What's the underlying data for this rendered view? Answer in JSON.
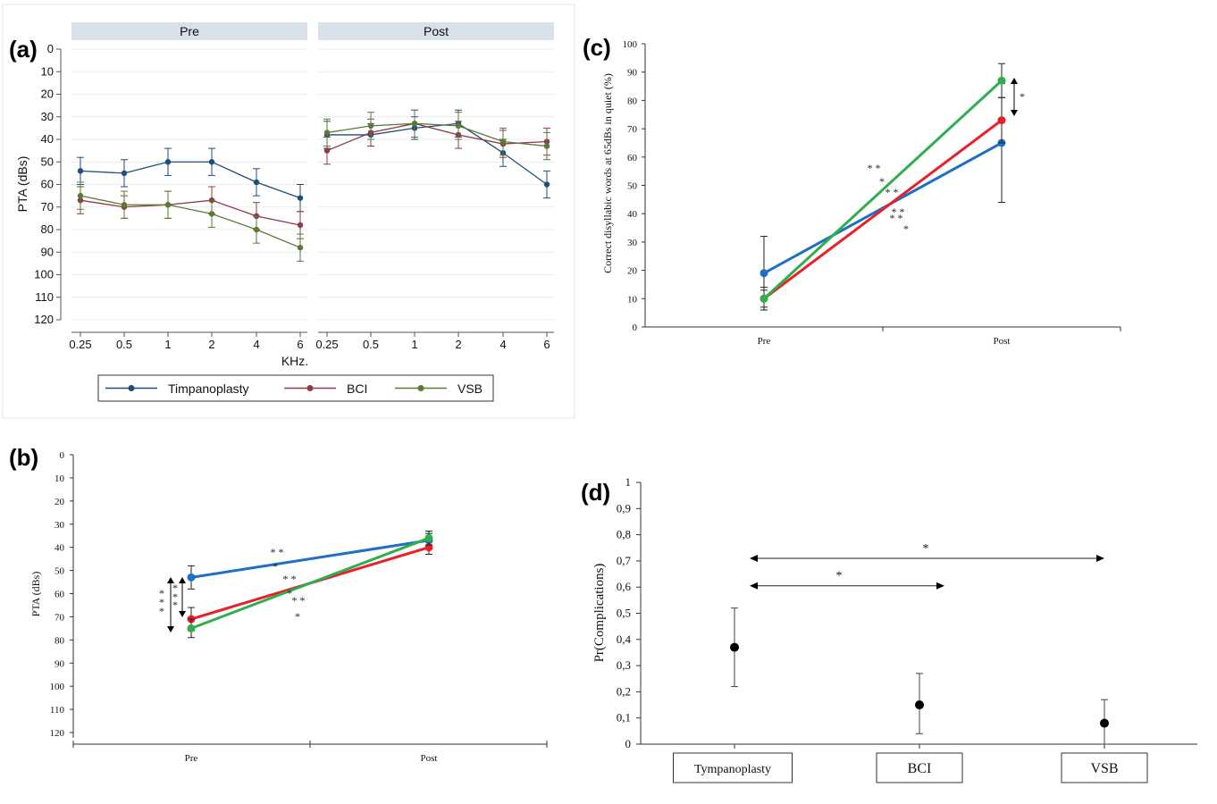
{
  "panels": {
    "a": {
      "letter": "(a)"
    },
    "b": {
      "letter": "(b)"
    },
    "c": {
      "letter": "(c)"
    },
    "d": {
      "letter": "(d)"
    }
  },
  "chart_data": [
    {
      "id": "a",
      "type": "line",
      "facets": [
        "Pre",
        "Post"
      ],
      "categories": [
        "0.25",
        "0.5",
        "1",
        "2",
        "4",
        "6"
      ],
      "xlabel": "KHz.",
      "ylabel": "PTA (dBs)",
      "ylim": [
        0,
        120
      ],
      "y_reversed": true,
      "yticks": [
        0,
        10,
        20,
        30,
        40,
        50,
        60,
        70,
        80,
        90,
        100,
        110,
        120
      ],
      "grid": true,
      "legend_position": "bottom",
      "series": [
        {
          "name": "Timpanoplasty",
          "color": "#1f4e79",
          "pre": [
            54,
            55,
            50,
            50,
            59,
            66
          ],
          "post": [
            38,
            38,
            35,
            33,
            46,
            60
          ],
          "pre_err": [
            6,
            6,
            6,
            6,
            6,
            6
          ],
          "post_err": [
            6,
            5,
            5,
            6,
            6,
            6
          ]
        },
        {
          "name": "BCI",
          "color": "#8e3b46",
          "pre": [
            67,
            70,
            69,
            67,
            74,
            78
          ],
          "post": [
            45,
            37,
            33,
            38,
            42,
            41
          ],
          "pre_err": [
            6,
            5,
            6,
            6,
            6,
            6
          ],
          "post_err": [
            6,
            6,
            6,
            6,
            6,
            6
          ]
        },
        {
          "name": "VSB",
          "color": "#5a7a36",
          "pre": [
            65,
            69,
            69,
            73,
            80,
            88
          ],
          "post": [
            37,
            34,
            33,
            34,
            41,
            43
          ],
          "pre_err": [
            6,
            6,
            6,
            6,
            6,
            6
          ],
          "post_err": [
            6,
            6,
            6,
            6,
            6,
            6
          ]
        }
      ]
    },
    {
      "id": "b",
      "type": "line",
      "categories": [
        "Pre",
        "Post"
      ],
      "ylabel": "PTA (dBs)",
      "ylim": [
        0,
        120
      ],
      "y_reversed": true,
      "yticks": [
        0,
        10,
        20,
        30,
        40,
        50,
        60,
        70,
        80,
        90,
        100,
        110,
        120
      ],
      "series": [
        {
          "color": "#1f6fc4",
          "values": [
            53,
            37
          ],
          "err": [
            5,
            3
          ]
        },
        {
          "color": "#e8202a",
          "values": [
            71,
            40
          ],
          "err": [
            5,
            3
          ]
        },
        {
          "color": "#2fae4d",
          "values": [
            75,
            36
          ],
          "err": [
            4,
            3
          ]
        }
      ],
      "annotations": [
        "* *",
        "*",
        "* *",
        "*",
        "* *",
        "*",
        "*",
        "*",
        "*",
        "*",
        "*",
        "*"
      ]
    },
    {
      "id": "c",
      "type": "line",
      "categories": [
        "Pre",
        "Post"
      ],
      "ylabel": "Correct disyllabic words at 65dBs in quiet (%)",
      "ylim": [
        0,
        100
      ],
      "yticks": [
        0,
        10,
        20,
        30,
        40,
        50,
        60,
        70,
        80,
        90,
        100
      ],
      "series": [
        {
          "color": "#1f6fc4",
          "values": [
            19,
            65
          ],
          "err": [
            13,
            21
          ]
        },
        {
          "color": "#e8202a",
          "values": [
            10,
            73
          ],
          "err": [
            4,
            8
          ]
        },
        {
          "color": "#2fae4d",
          "values": [
            10,
            87
          ],
          "err": [
            3,
            6
          ]
        }
      ],
      "annotations": [
        "* *",
        "*",
        "* *",
        "* *",
        "* *",
        "*",
        "*"
      ]
    },
    {
      "id": "d",
      "type": "scatter",
      "categories": [
        "Tympanoplasty",
        "BCI",
        "VSB"
      ],
      "ylabel": "Pr(Complications)",
      "ylim": [
        0,
        1
      ],
      "yticks": [
        "0",
        "0,1",
        "0,2",
        "0,3",
        "0,4",
        "0,5",
        "0,6",
        "0,7",
        "0,8",
        "0,9",
        "1"
      ],
      "values": [
        0.37,
        0.15,
        0.08
      ],
      "ci_low": [
        0.22,
        0.04,
        0.0
      ],
      "ci_high": [
        0.52,
        0.27,
        0.17
      ],
      "comparisons": [
        {
          "from": "Tympanoplasty",
          "to": "VSB",
          "label": "*"
        },
        {
          "from": "Tympanoplasty",
          "to": "BCI",
          "label": "*"
        }
      ]
    }
  ]
}
